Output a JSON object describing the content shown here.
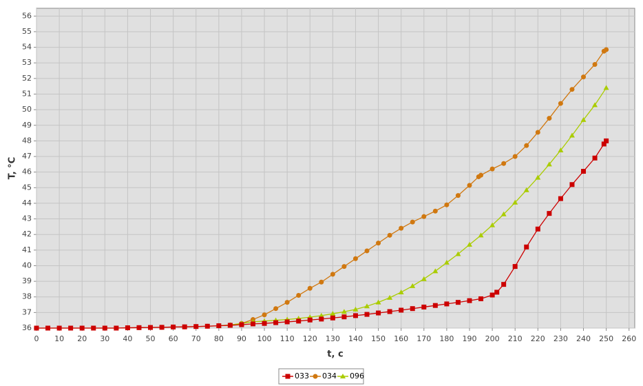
{
  "chart_data": {
    "type": "line",
    "x_label": "t, c",
    "y_label": "T, °C",
    "xlim": [
      0,
      262.5
    ],
    "ylim": [
      36,
      56.5
    ],
    "xticks": [
      0,
      10,
      20,
      30,
      40,
      50,
      60,
      70,
      80,
      90,
      100,
      110,
      120,
      130,
      140,
      150,
      160,
      170,
      180,
      190,
      200,
      210,
      220,
      230,
      240,
      250,
      260
    ],
    "yticks": [
      36,
      37,
      38,
      39,
      40,
      41,
      42,
      43,
      44,
      45,
      46,
      47,
      48,
      49,
      50,
      51,
      52,
      53,
      54,
      55,
      56
    ],
    "grid": true,
    "legend": "bottom",
    "series": [
      {
        "name": "033",
        "color": "#cc0000",
        "marker": "square",
        "x": [
          0,
          5,
          10,
          15,
          20,
          25,
          30,
          35,
          40,
          45,
          50,
          55,
          60,
          65,
          70,
          75,
          80,
          85,
          90,
          95,
          100,
          105,
          110,
          115,
          120,
          125,
          130,
          135,
          140,
          145,
          150,
          155,
          160,
          165,
          170,
          175,
          180,
          185,
          190,
          195,
          200,
          202,
          205,
          210,
          215,
          220,
          225,
          230,
          235,
          240,
          245,
          249,
          250
        ],
        "values": [
          36,
          36,
          36,
          36,
          36,
          36,
          36,
          36,
          36.02,
          36.03,
          36.04,
          36.05,
          36.07,
          36.08,
          36.1,
          36.12,
          36.15,
          36.18,
          36.22,
          36.27,
          36.3,
          36.35,
          36.4,
          36.45,
          36.52,
          36.58,
          36.65,
          36.72,
          36.8,
          36.88,
          36.97,
          37.06,
          37.15,
          37.25,
          37.35,
          37.45,
          37.55,
          37.65,
          37.76,
          37.88,
          38.12,
          38.3,
          38.8,
          39.95,
          41.2,
          42.35,
          43.35,
          44.3,
          45.2,
          46.05,
          46.9,
          47.8,
          48.0
        ]
      },
      {
        "name": "034",
        "color": "#d07810",
        "marker": "circle",
        "x": [
          0,
          5,
          10,
          15,
          20,
          25,
          30,
          35,
          40,
          45,
          50,
          55,
          60,
          65,
          70,
          75,
          80,
          85,
          90,
          95,
          100,
          105,
          110,
          115,
          120,
          125,
          130,
          135,
          140,
          145,
          150,
          155,
          160,
          165,
          170,
          175,
          180,
          185,
          190,
          194,
          195,
          200,
          205,
          210,
          215,
          220,
          225,
          230,
          235,
          240,
          245,
          249,
          250
        ],
        "values": [
          36,
          36,
          36,
          36,
          36,
          36,
          36,
          36,
          36.02,
          36.03,
          36.04,
          36.05,
          36.07,
          36.08,
          36.1,
          36.12,
          36.15,
          36.2,
          36.3,
          36.55,
          36.85,
          37.25,
          37.65,
          38.1,
          38.55,
          38.95,
          39.45,
          39.95,
          40.45,
          40.95,
          41.45,
          41.95,
          42.4,
          42.8,
          43.15,
          43.5,
          43.9,
          44.5,
          45.15,
          45.7,
          45.8,
          46.2,
          46.55,
          47.0,
          47.7,
          48.55,
          49.45,
          50.4,
          51.3,
          52.1,
          52.9,
          53.75,
          53.85
        ]
      },
      {
        "name": "096",
        "color": "#aacc00",
        "marker": "triangle",
        "x": [
          80,
          85,
          90,
          95,
          100,
          105,
          110,
          115,
          120,
          125,
          130,
          135,
          140,
          145,
          150,
          155,
          160,
          165,
          170,
          175,
          180,
          185,
          190,
          195,
          200,
          205,
          210,
          215,
          220,
          225,
          230,
          235,
          240,
          245,
          250
        ],
        "values": [
          36.15,
          36.2,
          36.3,
          36.4,
          36.45,
          36.5,
          36.55,
          36.62,
          36.7,
          36.8,
          36.92,
          37.05,
          37.2,
          37.4,
          37.65,
          37.95,
          38.3,
          38.7,
          39.15,
          39.65,
          40.2,
          40.75,
          41.35,
          41.95,
          42.6,
          43.3,
          44.05,
          44.85,
          45.65,
          46.5,
          47.4,
          48.35,
          49.35,
          50.3,
          51.4
        ]
      }
    ]
  }
}
